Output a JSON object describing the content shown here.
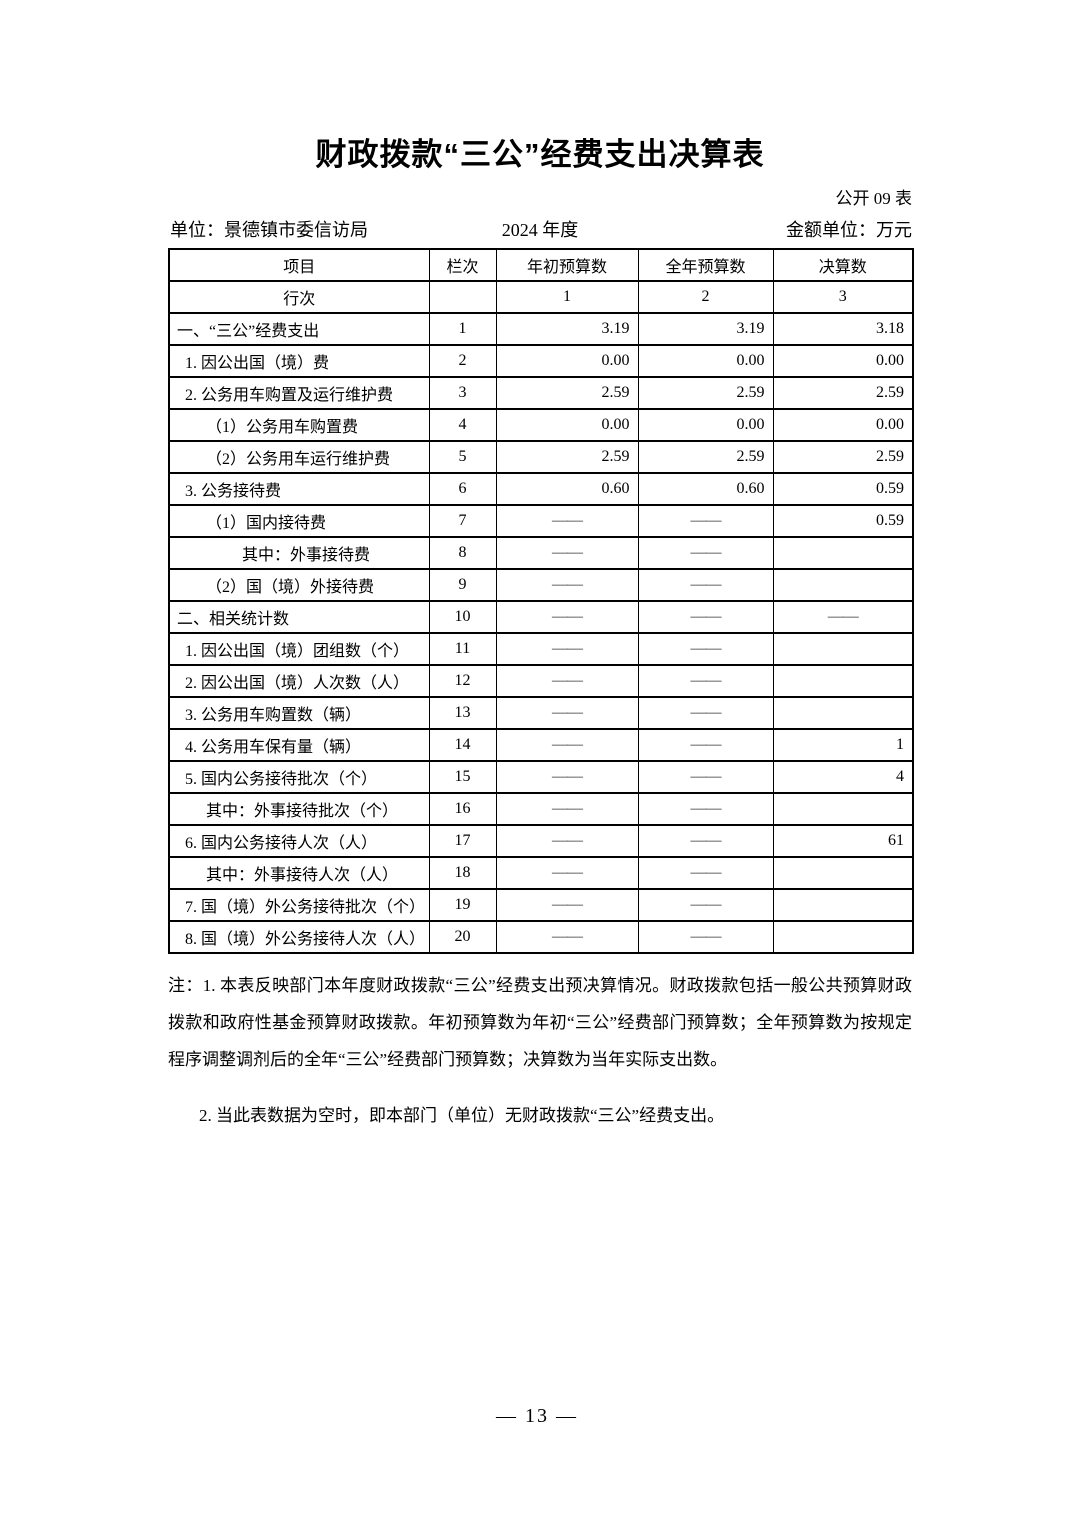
{
  "page": {
    "title": "财政拨款“三公”经费支出决算表",
    "form_code": "公开 09 表",
    "unit": "单位：景德镇市委信访局",
    "year": "2024 年度",
    "amount_unit": "金额单位：万元",
    "page_number": "— 13 —"
  },
  "table": {
    "columns": [
      "项目",
      "栏次",
      "年初预算数",
      "全年预算数",
      "决算数"
    ],
    "rows": [
      {
        "type": "lane",
        "indent": 0,
        "item": "行次",
        "lane": "",
        "v1": "1",
        "v2": "2",
        "v3": "3"
      },
      {
        "type": "data",
        "indent": 0,
        "item": "一、“三公”经费支出",
        "lane": "1",
        "v1": "3.19",
        "v2": "3.19",
        "v3": "3.18"
      },
      {
        "type": "data",
        "indent": 1,
        "item": "1. 因公出国（境）费",
        "lane": "2",
        "v1": "0.00",
        "v2": "0.00",
        "v3": "0.00"
      },
      {
        "type": "data",
        "indent": 1,
        "item": "2. 公务用车购置及运行维护费",
        "lane": "3",
        "v1": "2.59",
        "v2": "2.59",
        "v3": "2.59"
      },
      {
        "type": "data",
        "indent": 2,
        "item": "（1）公务用车购置费",
        "lane": "4",
        "v1": "0.00",
        "v2": "0.00",
        "v3": "0.00"
      },
      {
        "type": "data",
        "indent": 2,
        "item": "（2）公务用车运行维护费",
        "lane": "5",
        "v1": "2.59",
        "v2": "2.59",
        "v3": "2.59"
      },
      {
        "type": "data",
        "indent": 1,
        "item": "3. 公务接待费",
        "lane": "6",
        "v1": "0.60",
        "v2": "0.60",
        "v3": "0.59"
      },
      {
        "type": "data",
        "indent": 2,
        "item": "（1）国内接待费",
        "lane": "7",
        "v1": "——",
        "v2": "——",
        "v3": "0.59"
      },
      {
        "type": "data",
        "indent": 3,
        "item": "其中：外事接待费",
        "lane": "8",
        "v1": "——",
        "v2": "——",
        "v3": ""
      },
      {
        "type": "data",
        "indent": 2,
        "item": "（2）国（境）外接待费",
        "lane": "9",
        "v1": "——",
        "v2": "——",
        "v3": ""
      },
      {
        "type": "data",
        "indent": 0,
        "item": "二、相关统计数",
        "lane": "10",
        "v1": "——",
        "v2": "——",
        "v3": "——"
      },
      {
        "type": "data",
        "indent": 1,
        "item": "1. 因公出国（境）团组数（个）",
        "lane": "11",
        "v1": "——",
        "v2": "——",
        "v3": ""
      },
      {
        "type": "data",
        "indent": 1,
        "item": "2. 因公出国（境）人次数（人）",
        "lane": "12",
        "v1": "——",
        "v2": "——",
        "v3": ""
      },
      {
        "type": "data",
        "indent": 1,
        "item": "3. 公务用车购置数（辆）",
        "lane": "13",
        "v1": "——",
        "v2": "——",
        "v3": ""
      },
      {
        "type": "data",
        "indent": 1,
        "item": "4. 公务用车保有量（辆）",
        "lane": "14",
        "v1": "——",
        "v2": "——",
        "v3": "1"
      },
      {
        "type": "data",
        "indent": 1,
        "item": "5. 国内公务接待批次（个）",
        "lane": "15",
        "v1": "——",
        "v2": "——",
        "v3": "4"
      },
      {
        "type": "data",
        "indent": 2,
        "item": "其中：外事接待批次（个）",
        "lane": "16",
        "v1": "——",
        "v2": "——",
        "v3": ""
      },
      {
        "type": "data",
        "indent": 1,
        "item": "6. 国内公务接待人次（人）",
        "lane": "17",
        "v1": "——",
        "v2": "——",
        "v3": "61"
      },
      {
        "type": "data",
        "indent": 2,
        "item": "其中：外事接待人次（人）",
        "lane": "18",
        "v1": "——",
        "v2": "——",
        "v3": ""
      },
      {
        "type": "data",
        "indent": 1,
        "item": "7. 国（境）外公务接待批次（个）",
        "lane": "19",
        "v1": "——",
        "v2": "——",
        "v3": ""
      },
      {
        "type": "data",
        "indent": 1,
        "item": "8. 国（境）外公务接待人次（人）",
        "lane": "20",
        "v1": "——",
        "v2": "——",
        "v3": ""
      }
    ]
  },
  "notes": {
    "note1": "注：1. 本表反映部门本年度财政拨款“三公”经费支出预决算情况。财政拨款包括一般公共预算财政拨款和政府性基金预算财政拨款。年初预算数为年初“三公”经费部门预算数；全年预算数为按规定程序调整调剂后的全年“三公”经费部门预算数；决算数为当年实际支出数。",
    "note2": "2. 当此表数据为空时，即本部门（单位）无财政拨款“三公”经费支出。"
  }
}
